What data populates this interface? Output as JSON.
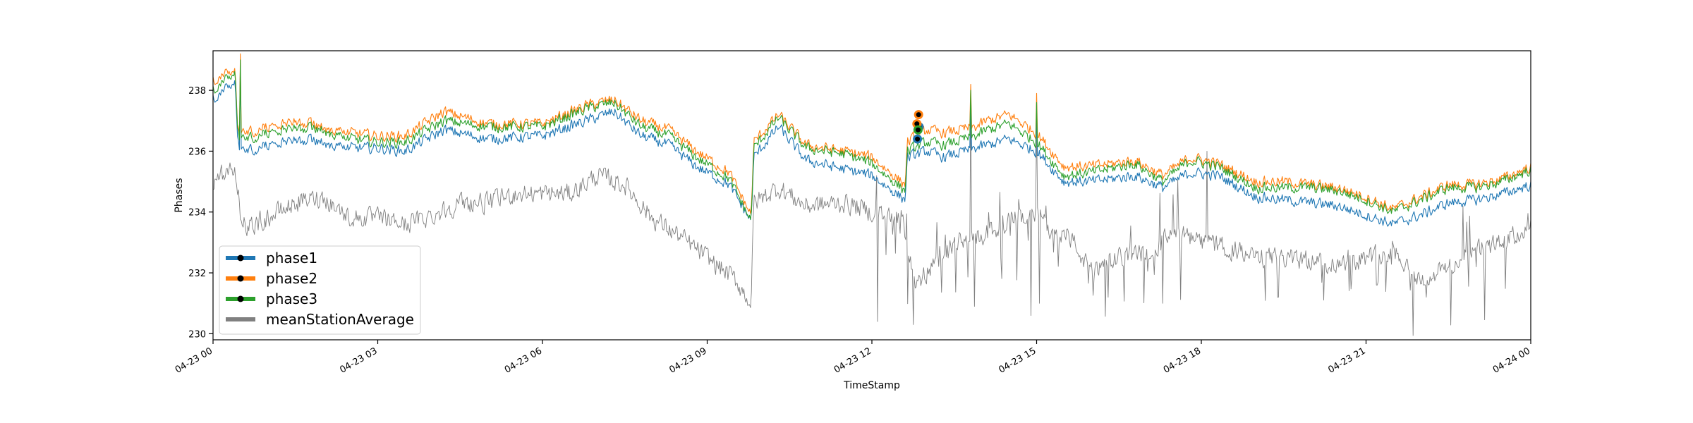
{
  "chart_data": {
    "type": "line",
    "title": "",
    "xlabel": "TimeStamp",
    "ylabel": "Phases",
    "x_ticks": [
      "04-23 00",
      "04-23 03",
      "04-23 06",
      "04-23 09",
      "04-23 12",
      "04-23 15",
      "04-23 18",
      "04-23 21",
      "04-24 00"
    ],
    "xlim_hours": [
      0,
      24
    ],
    "y_ticks": [
      "230",
      "232",
      "234",
      "236",
      "238"
    ],
    "ylim": [
      229.8,
      239.3
    ],
    "grid": false,
    "legend_position": "lower-left",
    "series": [
      {
        "name": "phase1",
        "color": "#1f77b4",
        "anchors": [
          [
            0,
            237.7
          ],
          [
            0.4,
            238.3
          ],
          [
            0.45,
            236.2
          ],
          [
            0.55,
            236.0
          ],
          [
            1.5,
            236.4
          ],
          [
            2,
            236.3
          ],
          [
            2.5,
            236.1
          ],
          [
            3,
            236.1
          ],
          [
            3.5,
            236.0
          ],
          [
            4.2,
            236.7
          ],
          [
            5,
            236.4
          ],
          [
            6,
            236.5
          ],
          [
            6.8,
            237.0
          ],
          [
            7.3,
            237.3
          ],
          [
            7.8,
            236.5
          ],
          [
            8.3,
            236.2
          ],
          [
            8.8,
            235.5
          ],
          [
            9.4,
            234.9
          ],
          [
            9.8,
            233.7
          ],
          [
            9.85,
            235.8
          ],
          [
            10.3,
            236.8
          ],
          [
            10.8,
            235.7
          ],
          [
            11.5,
            235.4
          ],
          [
            12,
            235.2
          ],
          [
            12.6,
            234.4
          ],
          [
            12.65,
            235.8
          ],
          [
            13,
            236.0
          ],
          [
            13.3,
            235.8
          ],
          [
            13.9,
            236.1
          ],
          [
            14.1,
            236.2
          ],
          [
            14.5,
            236.4
          ],
          [
            15,
            236.0
          ],
          [
            15.5,
            235.0
          ],
          [
            16,
            235.0
          ],
          [
            16.8,
            235.2
          ],
          [
            17.3,
            234.8
          ],
          [
            17.8,
            235.3
          ],
          [
            18.3,
            235.2
          ],
          [
            19,
            234.5
          ],
          [
            19.5,
            234.4
          ],
          [
            20,
            234.3
          ],
          [
            20.5,
            234.2
          ],
          [
            21,
            233.9
          ],
          [
            21.5,
            233.6
          ],
          [
            22,
            233.9
          ],
          [
            22.5,
            234.3
          ],
          [
            23,
            234.4
          ],
          [
            23.5,
            234.6
          ],
          [
            24,
            234.9
          ]
        ],
        "noise": 0.25,
        "spikes": [
          [
            0.5,
            238.9
          ],
          [
            13.8,
            237.8
          ],
          [
            15.0,
            237.3
          ]
        ]
      },
      {
        "name": "phase2",
        "color": "#ff7f0e",
        "anchors": [
          [
            0,
            238.3
          ],
          [
            0.4,
            238.7
          ],
          [
            0.45,
            236.6
          ],
          [
            0.55,
            236.6
          ],
          [
            1.5,
            237.0
          ],
          [
            2,
            236.8
          ],
          [
            2.5,
            236.6
          ],
          [
            3,
            236.5
          ],
          [
            3.5,
            236.5
          ],
          [
            4.2,
            237.3
          ],
          [
            5,
            236.9
          ],
          [
            6,
            236.9
          ],
          [
            6.8,
            237.5
          ],
          [
            7.3,
            237.7
          ],
          [
            7.8,
            237.0
          ],
          [
            8.3,
            236.7
          ],
          [
            8.8,
            236.0
          ],
          [
            9.4,
            235.3
          ],
          [
            9.8,
            233.9
          ],
          [
            9.85,
            236.3
          ],
          [
            10.3,
            237.2
          ],
          [
            10.8,
            236.2
          ],
          [
            11.5,
            236.0
          ],
          [
            12,
            235.8
          ],
          [
            12.6,
            234.9
          ],
          [
            12.65,
            236.3
          ],
          [
            13,
            236.7
          ],
          [
            13.3,
            236.6
          ],
          [
            13.9,
            236.8
          ],
          [
            14.1,
            237.0
          ],
          [
            14.5,
            237.2
          ],
          [
            15,
            236.6
          ],
          [
            15.5,
            235.5
          ],
          [
            16,
            235.5
          ],
          [
            16.8,
            235.7
          ],
          [
            17.3,
            235.2
          ],
          [
            17.8,
            235.8
          ],
          [
            18.3,
            235.6
          ],
          [
            19,
            235.0
          ],
          [
            19.5,
            235.0
          ],
          [
            20,
            234.9
          ],
          [
            20.5,
            234.8
          ],
          [
            21,
            234.5
          ],
          [
            21.5,
            234.1
          ],
          [
            22,
            234.5
          ],
          [
            22.5,
            234.9
          ],
          [
            23,
            234.9
          ],
          [
            23.5,
            235.1
          ],
          [
            24,
            235.5
          ]
        ],
        "noise": 0.25,
        "spikes": [
          [
            0.5,
            239.2
          ],
          [
            13.8,
            238.2
          ],
          [
            15.0,
            237.9
          ]
        ]
      },
      {
        "name": "phase3",
        "color": "#2ca02c",
        "anchors": [
          [
            0,
            238.0
          ],
          [
            0.4,
            238.6
          ],
          [
            0.45,
            236.5
          ],
          [
            0.55,
            236.4
          ],
          [
            1.5,
            236.8
          ],
          [
            2,
            236.7
          ],
          [
            2.5,
            236.4
          ],
          [
            3,
            236.3
          ],
          [
            3.5,
            236.3
          ],
          [
            4.2,
            237.0
          ],
          [
            5,
            236.8
          ],
          [
            6,
            236.8
          ],
          [
            6.8,
            237.4
          ],
          [
            7.3,
            237.6
          ],
          [
            7.8,
            236.8
          ],
          [
            8.3,
            236.5
          ],
          [
            8.8,
            235.8
          ],
          [
            9.4,
            235.1
          ],
          [
            9.8,
            233.7
          ],
          [
            9.85,
            236.1
          ],
          [
            10.3,
            237.1
          ],
          [
            10.8,
            236.1
          ],
          [
            11.5,
            235.9
          ],
          [
            12,
            235.6
          ],
          [
            12.6,
            234.7
          ],
          [
            12.65,
            236.0
          ],
          [
            13,
            236.3
          ],
          [
            13.3,
            236.2
          ],
          [
            13.9,
            236.5
          ],
          [
            14.1,
            236.7
          ],
          [
            14.5,
            236.9
          ],
          [
            15,
            236.3
          ],
          [
            15.5,
            235.2
          ],
          [
            16,
            235.3
          ],
          [
            16.8,
            235.6
          ],
          [
            17.3,
            235.0
          ],
          [
            17.8,
            235.7
          ],
          [
            18.3,
            235.5
          ],
          [
            19,
            234.8
          ],
          [
            19.5,
            234.8
          ],
          [
            20,
            234.8
          ],
          [
            20.5,
            234.7
          ],
          [
            21,
            234.4
          ],
          [
            21.5,
            234.0
          ],
          [
            22,
            234.4
          ],
          [
            22.5,
            234.8
          ],
          [
            23,
            234.8
          ],
          [
            23.5,
            235.0
          ],
          [
            24,
            235.4
          ]
        ],
        "noise": 0.25,
        "spikes": [
          [
            0.5,
            239.0
          ],
          [
            13.8,
            238.0
          ],
          [
            15.0,
            237.6
          ]
        ]
      },
      {
        "name": "meanStationAverage",
        "color": "#808080",
        "anchors": [
          [
            0,
            235.0
          ],
          [
            0.4,
            235.5
          ],
          [
            0.5,
            234.0
          ],
          [
            0.6,
            233.5
          ],
          [
            1,
            233.8
          ],
          [
            1.5,
            234.3
          ],
          [
            2,
            234.5
          ],
          [
            2.5,
            233.8
          ],
          [
            3,
            233.8
          ],
          [
            3.5,
            233.6
          ],
          [
            4,
            233.9
          ],
          [
            4.5,
            234.3
          ],
          [
            5,
            234.3
          ],
          [
            5.5,
            234.6
          ],
          [
            6,
            234.6
          ],
          [
            6.5,
            234.6
          ],
          [
            7,
            235.2
          ],
          [
            7.5,
            234.9
          ],
          [
            8,
            233.8
          ],
          [
            8.5,
            233.2
          ],
          [
            9,
            232.5
          ],
          [
            9.5,
            231.8
          ],
          [
            9.8,
            231.0
          ],
          [
            9.85,
            234.3
          ],
          [
            10.3,
            234.8
          ],
          [
            10.8,
            234.2
          ],
          [
            11.5,
            234.3
          ],
          [
            12,
            234.0
          ],
          [
            12.5,
            233.9
          ],
          [
            12.6,
            233.4
          ],
          [
            12.8,
            231.5
          ],
          [
            13.2,
            232.5
          ],
          [
            13.6,
            233.0
          ],
          [
            14,
            233.2
          ],
          [
            14.5,
            233.7
          ],
          [
            15,
            234.0
          ],
          [
            15.2,
            233.5
          ],
          [
            15.6,
            233.2
          ],
          [
            16,
            232.0
          ],
          [
            16.5,
            232.5
          ],
          [
            17,
            232.7
          ],
          [
            17.5,
            233.3
          ],
          [
            18,
            233.0
          ],
          [
            18.5,
            232.8
          ],
          [
            19,
            232.5
          ],
          [
            19.5,
            232.5
          ],
          [
            20,
            232.4
          ],
          [
            20.5,
            232.3
          ],
          [
            21,
            232.5
          ],
          [
            21.5,
            232.8
          ],
          [
            22,
            231.7
          ],
          [
            22.5,
            232.2
          ],
          [
            23,
            232.7
          ],
          [
            23.5,
            233.0
          ],
          [
            24,
            233.5
          ]
        ],
        "noise": 0.45,
        "dips": [
          [
            12.1,
            230.4
          ],
          [
            12.75,
            230.3
          ],
          [
            13.8,
            230.4
          ],
          [
            14.9,
            230.6
          ],
          [
            15.05,
            231.0
          ],
          [
            16.3,
            231.2
          ],
          [
            17.3,
            231.0
          ],
          [
            19.4,
            231.2
          ],
          [
            21.2,
            231.6
          ],
          [
            22.1,
            231.2
          ]
        ],
        "spikes": [
          [
            13.8,
            237.6
          ],
          [
            15.0,
            237.0
          ],
          [
            18.1,
            236.0
          ]
        ]
      }
    ],
    "marker_points": [
      {
        "series": "phase1",
        "x": 12.83,
        "y": 236.4
      },
      {
        "series": "phase1",
        "x": 12.86,
        "y": 236.8
      },
      {
        "series": "phase2",
        "x": 12.85,
        "y": 237.2
      },
      {
        "series": "phase2",
        "x": 12.82,
        "y": 236.9
      },
      {
        "series": "phase3",
        "x": 12.84,
        "y": 236.7
      }
    ]
  }
}
